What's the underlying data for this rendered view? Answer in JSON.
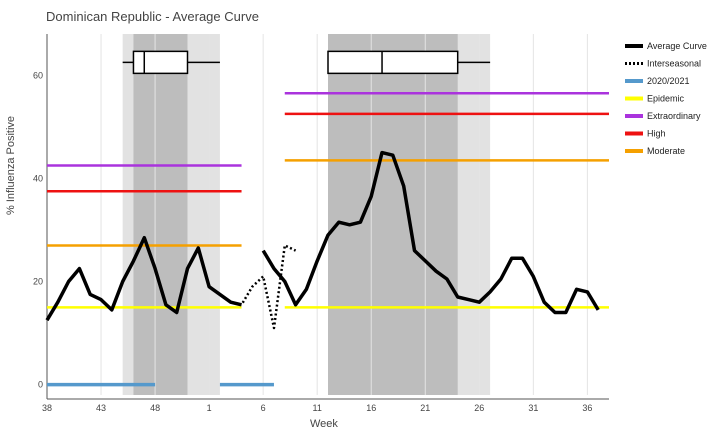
{
  "chart_data": {
    "type": "line",
    "title": "Dominican Republic - Average Curve",
    "xlabel": "Week",
    "ylabel": "% Influenza Positive",
    "x_ticks": [
      "38",
      "43",
      "48",
      "1",
      "6",
      "11",
      "16",
      "21",
      "26",
      "31",
      "36"
    ],
    "y_ticks": [
      0,
      20,
      40,
      60
    ],
    "ylim": [
      -2,
      68
    ],
    "weeks": [
      "38",
      "39",
      "40",
      "41",
      "42",
      "43",
      "44",
      "45",
      "46",
      "47",
      "48",
      "49",
      "50",
      "51",
      "52",
      "1",
      "2",
      "3",
      "4",
      "5",
      "6",
      "7",
      "8",
      "9",
      "10",
      "11",
      "12",
      "13",
      "14",
      "15",
      "16",
      "17",
      "18",
      "19",
      "20",
      "21",
      "22",
      "23",
      "24",
      "25",
      "26",
      "27",
      "28",
      "29",
      "30",
      "31",
      "32",
      "33",
      "34",
      "35",
      "36",
      "37",
      "38"
    ],
    "series": [
      {
        "name": "Average Curve",
        "color": "#000000",
        "segments": [
          {
            "start": 0,
            "values": [
              12.5,
              16,
              20,
              22.5,
              17.5,
              16.5,
              14.5,
              20,
              24,
              28.5,
              22.5,
              15.5,
              14,
              22.5,
              26.5,
              19,
              17.5,
              16,
              15.5
            ]
          },
          {
            "start": 20,
            "values": [
              26,
              22.5,
              20,
              15.5,
              18.5,
              24,
              29,
              31.5,
              31,
              31.5,
              36.5,
              45,
              44.5,
              38.5,
              26,
              24,
              22,
              20.5,
              17,
              16.5,
              16,
              18,
              20.5,
              24.5,
              24.5,
              21,
              16,
              14,
              14,
              18.5,
              18,
              14.5
            ]
          }
        ]
      },
      {
        "name": "Interseasonal",
        "color": "#000000",
        "dash": true,
        "segments": [
          {
            "start": 17,
            "values": [
              16,
              15.5,
              19,
              21,
              11,
              27,
              26
            ]
          }
        ]
      }
    ],
    "thresholds": [
      {
        "name": "Epidemic",
        "color": "#ffff00",
        "periods": [
          {
            "from": 0,
            "to": 18,
            "value": 15
          },
          {
            "from": 22,
            "to": 52,
            "value": 15
          }
        ]
      },
      {
        "name": "Moderate",
        "color": "#f5a000",
        "periods": [
          {
            "from": 0,
            "to": 18,
            "value": 27
          },
          {
            "from": 22,
            "to": 52,
            "value": 43.5
          }
        ]
      },
      {
        "name": "High",
        "color": "#ee1111",
        "periods": [
          {
            "from": 0,
            "to": 18,
            "value": 37.5
          },
          {
            "from": 22,
            "to": 52,
            "value": 52.5
          }
        ]
      },
      {
        "name": "Extraordinary",
        "color": "#aa33dd",
        "periods": [
          {
            "from": 0,
            "to": 18,
            "value": 42.5
          },
          {
            "from": 22,
            "to": 52,
            "value": 56.5
          }
        ]
      }
    ],
    "season_2020_2021": {
      "name": "2020/2021",
      "color": "#5599cc",
      "value": 0,
      "periods": [
        {
          "from": 0,
          "to": 10
        },
        {
          "from": 16,
          "to": 21
        }
      ]
    },
    "season_bands": [
      {
        "outer": [
          7,
          16
        ],
        "inner": [
          8,
          13
        ]
      },
      {
        "outer": [
          26,
          41
        ],
        "inner": [
          26,
          38
        ]
      }
    ],
    "boxplots": [
      {
        "y": 62.5,
        "whisker_low": 7,
        "q1": 8,
        "median": 9,
        "q3": 13,
        "whisker_high": 16
      },
      {
        "y": 62.5,
        "whisker_low": 26,
        "q1": 26,
        "median": 31,
        "q3": 38,
        "whisker_high": 41
      }
    ],
    "legend": [
      "Average Curve",
      "Interseasonal",
      "2020/2021",
      "Epidemic",
      "Extraordinary",
      "High",
      "Moderate"
    ],
    "legend_position": "right",
    "grid": "vertical"
  }
}
